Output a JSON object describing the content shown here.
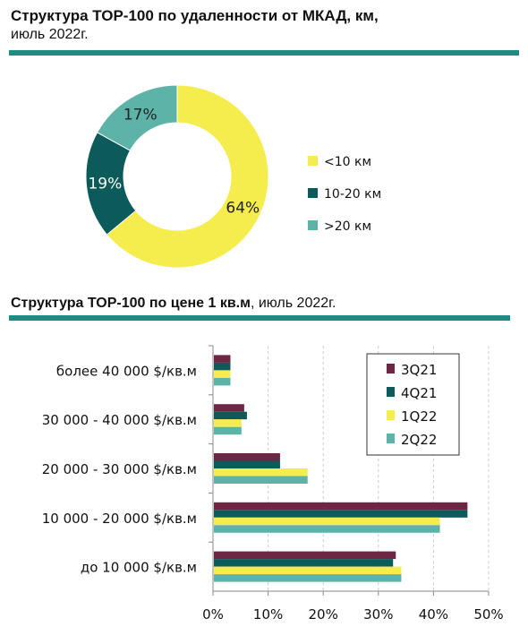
{
  "header1": {
    "title": "Структура ТОР-100 по удаленности от МКАД, км,",
    "subtitle": "июль 2022г."
  },
  "header2": {
    "title_bold": "Структура ТОР-100 по цене 1 кв.м",
    "title_rest": ", июль 2022г."
  },
  "chart_data": [
    {
      "type": "pie",
      "categories": [
        "<10 км",
        "10-20 км",
        ">20 км"
      ],
      "values": [
        64,
        19,
        17
      ],
      "data_labels": [
        "64%",
        "19%",
        "17%"
      ],
      "colors": [
        "#f5ec4e",
        "#0d5a5a",
        "#5eb3a8"
      ],
      "legend": "right"
    },
    {
      "type": "bar",
      "orientation": "horizontal",
      "categories": [
        "более 40 000 $/кв.м",
        "30 000 - 40 000 $/кв.м",
        "20 000 - 30 000 $/кв.м",
        "10 000 - 20 000 $/кв.м",
        "до 10 000 $/кв.м"
      ],
      "series": [
        {
          "name": "3Q21",
          "color": "#6e2645",
          "values": [
            3,
            5.5,
            12,
            46,
            33
          ]
        },
        {
          "name": "4Q21",
          "color": "#0d5a5a",
          "values": [
            3,
            6,
            12,
            46,
            32.5
          ]
        },
        {
          "name": "1Q22",
          "color": "#f5ec4e",
          "values": [
            3,
            5,
            17,
            41,
            34
          ]
        },
        {
          "name": "2Q22",
          "color": "#5eb3a8",
          "values": [
            3,
            5,
            17,
            41,
            34
          ]
        }
      ],
      "xlim": [
        0,
        50
      ],
      "xticks": [
        "0%",
        "10%",
        "20%",
        "30%",
        "40%",
        "50%"
      ],
      "legend": "top-right"
    }
  ]
}
